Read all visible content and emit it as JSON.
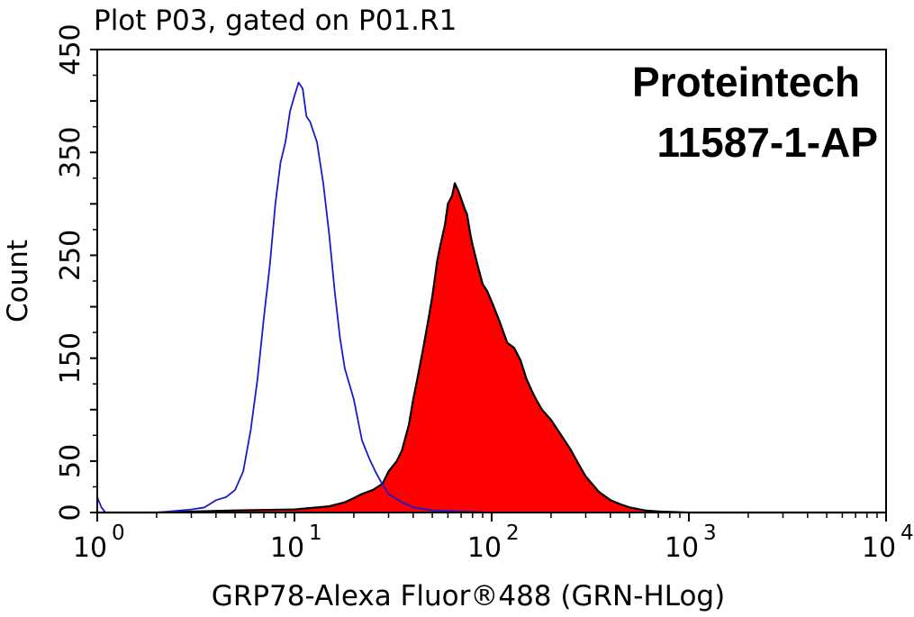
{
  "chart_data": {
    "type": "area",
    "title": "Plot P03, gated on P01.R1",
    "xlabel": "GRP78-Alexa Fluor®488 (GRN-HLog)",
    "ylabel": "Count",
    "x_scale": "log",
    "xlim": [
      1,
      10000
    ],
    "ylim": [
      0,
      450
    ],
    "x_ticks": [
      {
        "value": 1,
        "base": "10",
        "exp": "0"
      },
      {
        "value": 10,
        "base": "10",
        "exp": "1"
      },
      {
        "value": 100,
        "base": "10",
        "exp": "2"
      },
      {
        "value": 1000,
        "base": "10",
        "exp": "3"
      },
      {
        "value": 10000,
        "base": "10",
        "exp": "4"
      }
    ],
    "y_ticks": [
      "0",
      "50",
      "150",
      "250",
      "350",
      "450"
    ],
    "y_tick_values": [
      0,
      50,
      150,
      250,
      350,
      450
    ],
    "grid": false,
    "annotation": [
      "Proteintech",
      "11587-1-AP"
    ],
    "series": [
      {
        "color": "#1a1acc",
        "fill": "none",
        "x": [
          1,
          1.05,
          1.1,
          2,
          3,
          3.5,
          4,
          4.5,
          5,
          5.5,
          6,
          6.5,
          7,
          7.5,
          8,
          8.5,
          9,
          9.5,
          10,
          10.5,
          11,
          11.5,
          12,
          13,
          14,
          15,
          16,
          17,
          18,
          20,
          22,
          24,
          26,
          28,
          30,
          35,
          40,
          50,
          70,
          100,
          200,
          1000,
          10000
        ],
        "y": [
          15,
          5,
          0,
          0,
          3,
          5,
          12,
          15,
          22,
          40,
          80,
          130,
          190,
          240,
          300,
          340,
          360,
          390,
          405,
          418,
          412,
          385,
          380,
          360,
          320,
          270,
          215,
          170,
          140,
          110,
          70,
          52,
          38,
          27,
          18,
          10,
          5,
          2,
          1,
          0,
          0,
          0,
          0
        ]
      },
      {
        "color": "#000000",
        "fill": "#ff0000",
        "x": [
          1,
          2,
          5,
          10,
          15,
          18,
          20,
          22,
          25,
          28,
          30,
          33,
          35,
          38,
          40,
          42,
          45,
          48,
          50,
          53,
          55,
          58,
          60,
          63,
          65,
          68,
          70,
          73,
          75,
          78,
          80,
          85,
          90,
          95,
          100,
          110,
          120,
          130,
          140,
          150,
          160,
          170,
          180,
          200,
          220,
          250,
          280,
          300,
          350,
          400,
          450,
          500,
          600,
          700,
          1000,
          2000,
          10000
        ],
        "y": [
          0,
          0,
          2,
          3,
          6,
          10,
          14,
          18,
          22,
          28,
          40,
          50,
          60,
          85,
          110,
          130,
          160,
          190,
          210,
          245,
          260,
          280,
          300,
          308,
          320,
          312,
          305,
          295,
          290,
          270,
          260,
          240,
          222,
          215,
          205,
          185,
          165,
          160,
          148,
          130,
          118,
          108,
          100,
          90,
          78,
          62,
          45,
          35,
          20,
          12,
          8,
          5,
          2,
          1,
          0,
          0,
          0
        ]
      }
    ]
  }
}
